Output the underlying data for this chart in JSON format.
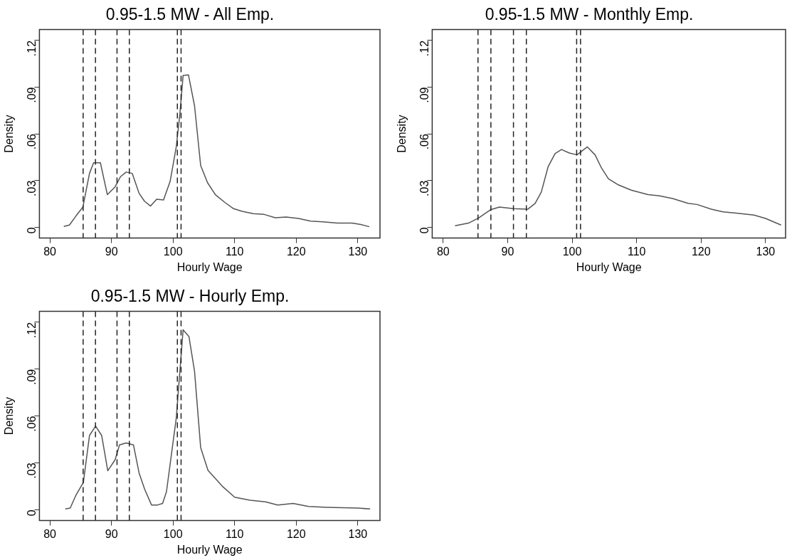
{
  "chart_data": [
    {
      "type": "line",
      "title": "0.95-1.5 MW - All Emp.",
      "xlabel": "Hourly Wage",
      "ylabel": "Density",
      "xlim": [
        78.3,
        133.6
      ],
      "ylim": [
        -0.007,
        0.127
      ],
      "xticks": [
        80,
        90,
        100,
        110,
        120,
        130
      ],
      "yticks": [
        {
          "value": 0,
          "label": "0"
        },
        {
          "value": 0.03,
          "label": ".03"
        },
        {
          "value": 0.06,
          "label": ".06"
        },
        {
          "value": 0.09,
          "label": ".09"
        },
        {
          "value": 0.12,
          "label": ".12"
        }
      ],
      "grid": false,
      "legend": false,
      "marker": "none",
      "line_style": "solid",
      "series": [
        {
          "color": "#555555",
          "x": [
            82.26,
            83.17,
            84.25,
            85.36,
            86.43,
            87.1,
            88.2,
            89.33,
            90.6,
            91.47,
            92.38,
            93.37,
            94.48,
            95.36,
            96.35,
            97.34,
            98.45,
            99.52,
            100.52,
            101.11,
            101.63,
            102.5,
            103.49,
            104.48,
            105.6,
            106.87,
            108.45,
            109.84,
            111.23,
            113.02,
            114.8,
            116.59,
            118.37,
            120.36,
            122.34,
            124.33,
            126.71,
            129.09,
            130.48,
            131.87
          ],
          "values": [
            0.0005,
            0.0014,
            0.0073,
            0.0129,
            0.0346,
            0.0414,
            0.0414,
            0.0209,
            0.026,
            0.0325,
            0.0354,
            0.0346,
            0.0218,
            0.0167,
            0.0136,
            0.018,
            0.0175,
            0.0294,
            0.0516,
            0.0729,
            0.0975,
            0.0979,
            0.078,
            0.0397,
            0.0286,
            0.0209,
            0.0158,
            0.0119,
            0.0102,
            0.0087,
            0.0082,
            0.0061,
            0.0065,
            0.0056,
            0.0039,
            0.0034,
            0.0027,
            0.0026,
            0.0017,
            0.0003
          ]
        }
      ],
      "ref_lines": [
        {
          "axis": "x",
          "value": 85.4,
          "color": "#222222",
          "line_style": "dashed"
        },
        {
          "axis": "x",
          "value": 87.4,
          "color": "#222222",
          "line_style": "dashed"
        },
        {
          "axis": "x",
          "value": 90.9,
          "color": "#222222",
          "line_style": "dashed"
        },
        {
          "axis": "x",
          "value": 92.9,
          "color": "#222222",
          "line_style": "dashed"
        },
        {
          "axis": "x",
          "value": 100.7,
          "color": "#222222",
          "line_style": "dashed"
        },
        {
          "axis": "x",
          "value": 101.3,
          "color": "#222222",
          "line_style": "dashed"
        }
      ]
    },
    {
      "type": "line",
      "title": "0.95-1.5 MW - Monthly Emp.",
      "xlabel": "Hourly Wage",
      "ylabel": "Density",
      "xlim": [
        78.3,
        133.1
      ],
      "ylim": [
        -0.007,
        0.127
      ],
      "xticks": [
        80,
        90,
        100,
        110,
        120,
        130
      ],
      "yticks": [
        {
          "value": 0,
          "label": "0"
        },
        {
          "value": 0.03,
          "label": ".03"
        },
        {
          "value": 0.06,
          "label": ".06"
        },
        {
          "value": 0.09,
          "label": ".09"
        },
        {
          "value": 0.12,
          "label": ".12"
        }
      ],
      "grid": false,
      "legend": false,
      "marker": "none",
      "line_style": "solid",
      "series": [
        {
          "color": "#555555",
          "x": [
            81.84,
            83.93,
            85.53,
            87.33,
            88.73,
            90.94,
            93.14,
            94.26,
            95.22,
            96.27,
            97.35,
            98.35,
            99.55,
            100.75,
            102.36,
            103.56,
            104.56,
            105.64,
            107.16,
            109.17,
            111.77,
            113.57,
            115.58,
            117.98,
            119.38,
            121.59,
            123.39,
            125.19,
            128.2,
            130.0,
            132.4
          ],
          "values": [
            0.0009,
            0.0026,
            0.006,
            0.0112,
            0.0129,
            0.0119,
            0.0116,
            0.0153,
            0.0226,
            0.0388,
            0.0473,
            0.0499,
            0.0477,
            0.0465,
            0.0516,
            0.0465,
            0.038,
            0.0311,
            0.0272,
            0.0238,
            0.0209,
            0.0201,
            0.0184,
            0.0153,
            0.0146,
            0.0116,
            0.0099,
            0.0092,
            0.0078,
            0.0056,
            0.0014
          ]
        }
      ],
      "ref_lines": [
        {
          "axis": "x",
          "value": 85.4,
          "color": "#222222",
          "line_style": "dashed"
        },
        {
          "axis": "x",
          "value": 87.4,
          "color": "#222222",
          "line_style": "dashed"
        },
        {
          "axis": "x",
          "value": 90.9,
          "color": "#222222",
          "line_style": "dashed"
        },
        {
          "axis": "x",
          "value": 92.9,
          "color": "#222222",
          "line_style": "dashed"
        },
        {
          "axis": "x",
          "value": 100.7,
          "color": "#222222",
          "line_style": "dashed"
        },
        {
          "axis": "x",
          "value": 101.3,
          "color": "#222222",
          "line_style": "dashed"
        }
      ]
    },
    {
      "type": "line",
      "title": "0.95-1.5 MW - Hourly Emp.",
      "xlabel": "Hourly Wage",
      "ylabel": "Density",
      "xlim": [
        78.3,
        133.6
      ],
      "ylim": [
        -0.007,
        0.127
      ],
      "xticks": [
        80,
        90,
        100,
        110,
        120,
        130
      ],
      "yticks": [
        {
          "value": 0,
          "label": "0"
        },
        {
          "value": 0.03,
          "label": ".03"
        },
        {
          "value": 0.06,
          "label": ".06"
        },
        {
          "value": 0.09,
          "label": ".09"
        },
        {
          "value": 0.12,
          "label": ".12"
        }
      ],
      "grid": false,
      "legend": false,
      "marker": "none",
      "line_style": "solid",
      "series": [
        {
          "color": "#555555",
          "x": [
            82.5,
            83.3,
            84.2,
            85.44,
            86.43,
            87.42,
            88.41,
            89.4,
            90.6,
            91.3,
            92.38,
            93.57,
            94.48,
            95.4,
            96.5,
            97.5,
            98.3,
            98.93,
            100.52,
            101.63,
            102.58,
            103.49,
            104.48,
            105.67,
            108,
            110,
            112.5,
            115,
            117,
            119.5,
            122,
            125,
            130,
            132
          ],
          "values": [
            0.0005,
            0.001,
            0.009,
            0.0175,
            0.0475,
            0.0535,
            0.0475,
            0.0249,
            0.032,
            0.0415,
            0.0427,
            0.0415,
            0.0235,
            0.013,
            0.003,
            0.003,
            0.004,
            0.0115,
            0.0586,
            0.1152,
            0.1109,
            0.0886,
            0.0398,
            0.0252,
            0.015,
            0.008,
            0.006,
            0.005,
            0.003,
            0.004,
            0.002,
            0.0015,
            0.001,
            0.0005
          ]
        }
      ],
      "ref_lines": [
        {
          "axis": "x",
          "value": 85.4,
          "color": "#222222",
          "line_style": "dashed"
        },
        {
          "axis": "x",
          "value": 87.4,
          "color": "#222222",
          "line_style": "dashed"
        },
        {
          "axis": "x",
          "value": 90.9,
          "color": "#222222",
          "line_style": "dashed"
        },
        {
          "axis": "x",
          "value": 92.9,
          "color": "#222222",
          "line_style": "dashed"
        },
        {
          "axis": "x",
          "value": 100.7,
          "color": "#222222",
          "line_style": "dashed"
        },
        {
          "axis": "x",
          "value": 101.3,
          "color": "#222222",
          "line_style": "dashed"
        }
      ]
    }
  ]
}
